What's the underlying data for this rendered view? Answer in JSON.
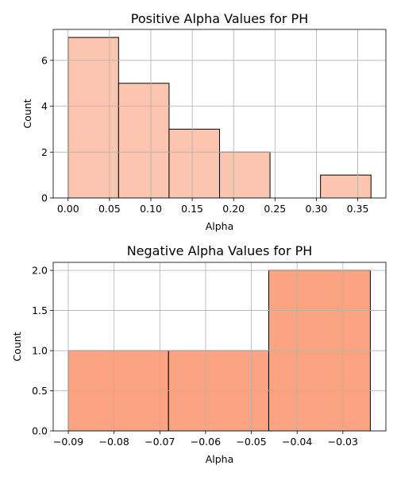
{
  "chart_data": [
    {
      "type": "bar",
      "title": "Positive Alpha Values for PH",
      "xlabel": "Alpha",
      "ylabel": "Count",
      "xlim": [
        -0.018,
        0.384
      ],
      "ylim": [
        0,
        7.35
      ],
      "xticks": [
        0.0,
        0.05,
        0.1,
        0.15,
        0.2,
        0.25,
        0.3,
        0.35
      ],
      "xtick_labels": [
        "0.00",
        "0.05",
        "0.10",
        "0.15",
        "0.20",
        "0.25",
        "0.30",
        "0.35"
      ],
      "yticks": [
        0,
        2,
        4,
        6
      ],
      "ytick_labels": [
        "0",
        "2",
        "4",
        "6"
      ],
      "grid": true,
      "color": "#fcc5b0",
      "bins": [
        {
          "x0": 0.0,
          "x1": 0.061,
          "count": 7
        },
        {
          "x0": 0.061,
          "x1": 0.122,
          "count": 5
        },
        {
          "x0": 0.122,
          "x1": 0.183,
          "count": 3
        },
        {
          "x0": 0.183,
          "x1": 0.244,
          "count": 2
        },
        {
          "x0": 0.244,
          "x1": 0.305,
          "count": 0
        },
        {
          "x0": 0.305,
          "x1": 0.366,
          "count": 1
        }
      ]
    },
    {
      "type": "bar",
      "title": "Negative Alpha Values for PH",
      "xlabel": "Alpha",
      "ylabel": "Count",
      "xlim": [
        -0.0933,
        -0.0206
      ],
      "ylim": [
        0,
        2.1
      ],
      "xticks": [
        -0.09,
        -0.08,
        -0.07,
        -0.06,
        -0.05,
        -0.04,
        -0.03
      ],
      "xtick_labels": [
        "−0.09",
        "−0.08",
        "−0.07",
        "−0.06",
        "−0.05",
        "−0.04",
        "−0.03"
      ],
      "yticks": [
        0,
        0.5,
        1.0,
        1.5,
        2.0
      ],
      "ytick_labels": [
        "0.0",
        "0.5",
        "1.0",
        "1.5",
        "2.0"
      ],
      "grid": true,
      "color": "#fca381",
      "bins": [
        {
          "x0": -0.09,
          "x1": -0.0681,
          "count": 1
        },
        {
          "x0": -0.0681,
          "x1": -0.0462,
          "count": 1
        },
        {
          "x0": -0.0462,
          "x1": -0.024,
          "count": 2
        }
      ]
    }
  ]
}
